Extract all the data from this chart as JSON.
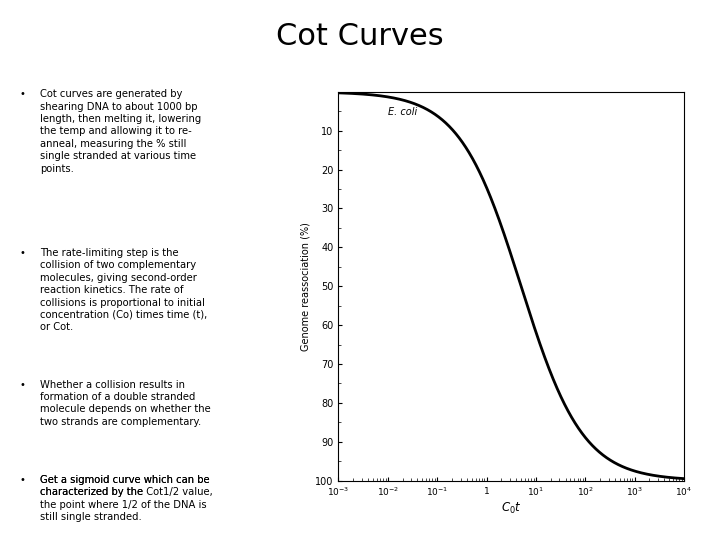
{
  "title": "Cot Curves",
  "title_fontsize": 22,
  "title_fontfamily": "DejaVu Sans",
  "background_color": "#ffffff",
  "bullet_points": [
    "Cot curves are generated by\nshearing DNA to about 1000 bp\nlength, then melting it, lowering\nthe temp and allowing it to re-\nanneal, measuring the % still\nsingle stranded at various time\npoints.",
    "The rate-limiting step is the\ncollision of two complementary\nmolecules, giving second-order\nreaction kinetics. The rate of\ncollisions is proportional to initial\nconcentration (Co) times time (t),\nor Cot.",
    "Whether a collision results in\nformation of a double stranded\nmolecule depends on whether the\ntwo strands are complementary.",
    "Get a sigmoid curve which can be\ncharacterized by the Cot1/2 value,\nthe point where 1/2 of the DNA is\nstill single stranded."
  ],
  "ylabel": "Genome reassociation (%)",
  "xlabel": "$C_0t$",
  "ecoli_label": "E. coli",
  "curve_color": "#000000",
  "curve_linewidth": 2.0,
  "cot_half_log10": 0.7,
  "sigmoid_k": 1.6,
  "yticks": [
    10,
    20,
    30,
    40,
    50,
    60,
    70,
    80,
    90,
    100
  ]
}
